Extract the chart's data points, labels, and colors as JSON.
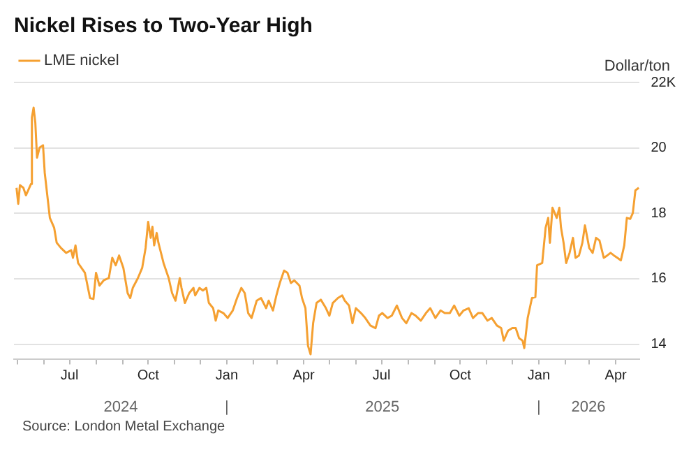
{
  "chart_data": {
    "type": "line",
    "title": "Nickel Rises to Two-Year High",
    "ylabel": "Dollar/ton",
    "annotations": [
      "Source: London Metal Exchange"
    ],
    "x": [
      "2024-04-30",
      "2024-05-02",
      "2024-05-04",
      "2024-05-08",
      "2024-05-11",
      "2024-05-17",
      "2024-05-18",
      "2024-05-20",
      "2024-05-22",
      "2024-05-24",
      "2024-05-27",
      "2024-05-31",
      "2024-06-02",
      "2024-06-08",
      "2024-06-13",
      "2024-06-16",
      "2024-06-21",
      "2024-06-27",
      "2024-07-03",
      "2024-07-05",
      "2024-07-08",
      "2024-07-11",
      "2024-07-19",
      "2024-07-25",
      "2024-07-29",
      "2024-08-01",
      "2024-08-05",
      "2024-08-10",
      "2024-08-16",
      "2024-08-20",
      "2024-08-24",
      "2024-08-28",
      "2024-09-02",
      "2024-09-07",
      "2024-09-10",
      "2024-09-13",
      "2024-09-19",
      "2024-09-24",
      "2024-09-28",
      "2024-10-01",
      "2024-10-04",
      "2024-10-06",
      "2024-10-08",
      "2024-10-11",
      "2024-10-13",
      "2024-10-19",
      "2024-10-25",
      "2024-10-29",
      "2024-11-02",
      "2024-11-07",
      "2024-11-09",
      "2024-11-13",
      "2024-11-18",
      "2024-11-23",
      "2024-11-25",
      "2024-11-30",
      "2024-12-04",
      "2024-12-08",
      "2024-12-11",
      "2024-12-16",
      "2024-12-19",
      "2024-12-22",
      "2024-12-28",
      "2025-01-02",
      "2025-01-08",
      "2025-01-13",
      "2025-01-18",
      "2025-01-22",
      "2025-01-26",
      "2025-01-30",
      "2025-02-05",
      "2025-02-10",
      "2025-02-16",
      "2025-02-19",
      "2025-02-24",
      "2025-02-28",
      "2025-03-04",
      "2025-03-09",
      "2025-03-13",
      "2025-03-17",
      "2025-03-21",
      "2025-03-27",
      "2025-03-30",
      "2025-04-03",
      "2025-04-06",
      "2025-04-09",
      "2025-04-12",
      "2025-04-16",
      "2025-04-21",
      "2025-04-27",
      "2025-05-01",
      "2025-05-05",
      "2025-05-11",
      "2025-05-16",
      "2025-05-19",
      "2025-05-24",
      "2025-05-28",
      "2025-06-01",
      "2025-06-07",
      "2025-06-12",
      "2025-06-18",
      "2025-06-24",
      "2025-06-28",
      "2025-07-02",
      "2025-07-08",
      "2025-07-13",
      "2025-07-19",
      "2025-07-25",
      "2025-07-30",
      "2025-08-05",
      "2025-08-10",
      "2025-08-16",
      "2025-08-22",
      "2025-08-27",
      "2025-09-02",
      "2025-09-08",
      "2025-09-13",
      "2025-09-19",
      "2025-09-24",
      "2025-09-30",
      "2025-10-05",
      "2025-10-11",
      "2025-10-16",
      "2025-10-22",
      "2025-10-27",
      "2025-11-02",
      "2025-11-07",
      "2025-11-13",
      "2025-11-18",
      "2025-11-21",
      "2025-11-26",
      "2025-12-01",
      "2025-12-05",
      "2025-12-09",
      "2025-12-13",
      "2025-12-15",
      "2025-12-19",
      "2025-12-24",
      "2025-12-28",
      "2025-12-30",
      "2026-01-05",
      "2026-01-09",
      "2026-01-12",
      "2026-01-14",
      "2026-01-17",
      "2026-01-22",
      "2026-01-25",
      "2026-01-27",
      "2026-01-30",
      "2026-02-02",
      "2026-02-06",
      "2026-02-10",
      "2026-02-13",
      "2026-02-17",
      "2026-02-21",
      "2026-02-24",
      "2026-03-01",
      "2026-03-05",
      "2026-03-09",
      "2026-03-13",
      "2026-03-18",
      "2026-03-22",
      "2026-03-26",
      "2026-03-30",
      "2026-04-03",
      "2026-04-07",
      "2026-04-11",
      "2026-04-14",
      "2026-04-18",
      "2026-04-21",
      "2026-04-24",
      "2026-04-28"
    ],
    "series": [
      {
        "name": "LME nickel",
        "color": "#f5a031",
        "values": [
          18.78,
          18.29,
          18.86,
          18.78,
          18.55,
          18.9,
          20.93,
          21.23,
          20.77,
          19.7,
          20.01,
          20.08,
          19.24,
          17.86,
          17.56,
          17.1,
          16.94,
          16.79,
          16.87,
          16.64,
          17.02,
          16.48,
          16.18,
          15.41,
          15.38,
          16.18,
          15.79,
          15.95,
          16.02,
          16.64,
          16.41,
          16.71,
          16.33,
          15.56,
          15.41,
          15.72,
          16.02,
          16.33,
          16.94,
          17.74,
          17.25,
          17.59,
          17.02,
          17.4,
          17.1,
          16.48,
          16.02,
          15.56,
          15.33,
          16.02,
          15.72,
          15.26,
          15.56,
          15.72,
          15.49,
          15.72,
          15.64,
          15.72,
          15.26,
          15.1,
          14.72,
          15.03,
          14.95,
          14.8,
          15.03,
          15.41,
          15.72,
          15.56,
          14.95,
          14.8,
          15.33,
          15.41,
          15.1,
          15.33,
          15.03,
          15.49,
          15.87,
          16.25,
          16.18,
          15.87,
          15.95,
          15.79,
          15.41,
          15.1,
          13.95,
          13.69,
          14.64,
          15.26,
          15.36,
          15.1,
          14.87,
          15.26,
          15.41,
          15.49,
          15.33,
          15.18,
          14.64,
          15.1,
          14.95,
          14.8,
          14.57,
          14.49,
          14.87,
          14.95,
          14.8,
          14.87,
          15.18,
          14.8,
          14.64,
          14.95,
          14.87,
          14.72,
          14.95,
          15.1,
          14.8,
          15.03,
          14.95,
          14.95,
          15.18,
          14.87,
          15.03,
          15.1,
          14.8,
          14.95,
          14.95,
          14.72,
          14.8,
          14.57,
          14.49,
          14.11,
          14.41,
          14.49,
          14.49,
          14.18,
          14.11,
          13.88,
          14.8,
          15.41,
          15.44,
          16.41,
          16.48,
          17.56,
          17.86,
          17.1,
          18.17,
          17.86,
          18.17,
          17.56,
          17.1,
          16.48,
          16.79,
          17.25,
          16.64,
          16.71,
          17.1,
          17.63,
          16.94,
          16.79,
          17.25,
          17.17,
          16.64,
          16.71,
          16.79,
          16.71,
          16.64,
          16.56,
          17.02,
          17.86,
          17.83,
          18.01,
          18.7,
          18.78
        ]
      }
    ],
    "xlim": [
      "2024-04-27",
      "2026-04-29"
    ],
    "xticks": [
      {
        "value": "2024-05-01",
        "label": null
      },
      {
        "value": "2024-06-01",
        "label": null
      },
      {
        "value": "2024-07-01",
        "label": "Jul"
      },
      {
        "value": "2024-08-01",
        "label": null
      },
      {
        "value": "2024-09-01",
        "label": null
      },
      {
        "value": "2024-10-01",
        "label": "Oct"
      },
      {
        "value": "2024-11-01",
        "label": null
      },
      {
        "value": "2024-12-01",
        "label": null
      },
      {
        "value": "2025-01-01",
        "label": "Jan"
      },
      {
        "value": "2025-02-01",
        "label": null
      },
      {
        "value": "2025-03-01",
        "label": null
      },
      {
        "value": "2025-04-01",
        "label": "Apr"
      },
      {
        "value": "2025-05-01",
        "label": null
      },
      {
        "value": "2025-06-01",
        "label": null
      },
      {
        "value": "2025-07-01",
        "label": "Jul"
      },
      {
        "value": "2025-08-01",
        "label": null
      },
      {
        "value": "2025-09-01",
        "label": null
      },
      {
        "value": "2025-10-01",
        "label": "Oct"
      },
      {
        "value": "2025-11-01",
        "label": null
      },
      {
        "value": "2025-12-01",
        "label": null
      },
      {
        "value": "2026-01-01",
        "label": "Jan"
      },
      {
        "value": "2026-02-01",
        "label": null
      },
      {
        "value": "2026-03-01",
        "label": null
      },
      {
        "value": "2026-04-01",
        "label": "Apr"
      }
    ],
    "x2lim": [
      "2024-04-27",
      "2026-04-29"
    ],
    "x2ticks": [
      {
        "value": "2024-08-30",
        "label": "2024"
      },
      {
        "value": "2025-01-01",
        "label": "|"
      },
      {
        "value": "2025-07-02",
        "label": "2025"
      },
      {
        "value": "2026-01-01",
        "label": "|"
      },
      {
        "value": "2026-02-28",
        "label": "2026"
      }
    ],
    "ylim": [
      13.55,
      22
    ],
    "yticks": [
      14,
      16,
      18,
      20,
      {
        "value": 22,
        "label": "22K"
      }
    ],
    "grid": "y",
    "legend": "top left",
    "line_style": "solid",
    "marker": "none"
  }
}
